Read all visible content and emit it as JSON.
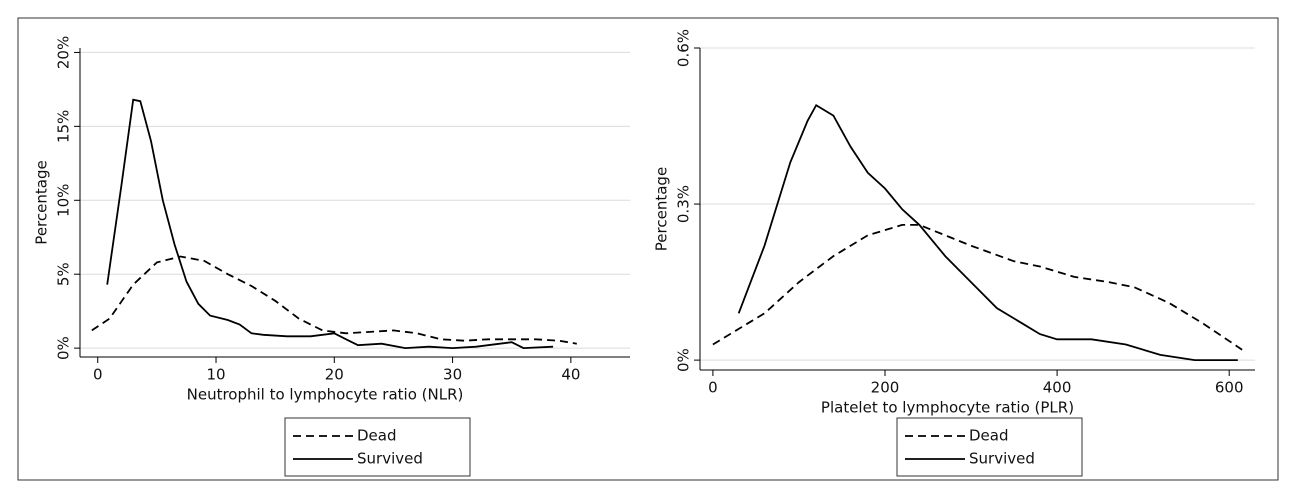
{
  "chart_data": [
    {
      "type": "line",
      "xlabel": "Neutrophil to lymphocyte ratio (NLR)",
      "ylabel": "Percentage",
      "xlim": [
        -1.5,
        45
      ],
      "ylim": [
        -0.6,
        20.3
      ],
      "xticks": [
        0,
        10,
        20,
        30,
        40
      ],
      "yticks": [
        {
          "value": 0,
          "label": "0%"
        },
        {
          "value": 5,
          "label": "5%"
        },
        {
          "value": 10,
          "label": "10%"
        },
        {
          "value": 15,
          "label": "15%"
        },
        {
          "value": 20,
          "label": "20%"
        }
      ],
      "grid": true,
      "series": [
        {
          "name": "Dead",
          "color": "#000000",
          "style": "dashed",
          "x": [
            -0.5,
            1,
            3,
            5,
            7,
            9,
            11,
            13,
            15,
            17,
            19,
            21,
            23,
            25,
            27,
            29,
            31,
            33,
            35,
            37,
            39,
            40.5
          ],
          "values": [
            1.2,
            2,
            4.3,
            5.8,
            6.2,
            5.9,
            5,
            4.2,
            3.2,
            2,
            1.2,
            1,
            1.1,
            1.2,
            1,
            0.6,
            0.5,
            0.6,
            0.6,
            0.6,
            0.5,
            0.3
          ]
        },
        {
          "name": "Survived",
          "color": "#000000",
          "style": "solid",
          "x": [
            0.8,
            2,
            3,
            3.6,
            4.5,
            5.5,
            6.5,
            7.5,
            8.5,
            9.5,
            11,
            12,
            13,
            14,
            16,
            18,
            20,
            21,
            22,
            24,
            26,
            28,
            30,
            32,
            34,
            35,
            36,
            38.5
          ],
          "values": [
            4.3,
            11,
            16.8,
            16.7,
            14,
            10,
            7,
            4.5,
            3,
            2.2,
            1.9,
            1.6,
            1,
            0.9,
            0.8,
            0.8,
            1,
            0.6,
            0.2,
            0.3,
            0,
            0.1,
            0,
            0.1,
            0.3,
            0.4,
            0,
            0.1
          ]
        }
      ]
    },
    {
      "type": "line",
      "xlabel": "Platelet to lymphocyte ratio (PLR)",
      "ylabel": "Percentage",
      "xlim": [
        -15,
        630
      ],
      "ylim": [
        -0.019,
        0.6
      ],
      "xticks": [
        0,
        200,
        400,
        600
      ],
      "yticks": [
        {
          "value": 0,
          "label": "0%"
        },
        {
          "value": 0.3,
          "label": "0.3%"
        },
        {
          "value": 0.6,
          "label": "0.6%"
        }
      ],
      "grid": true,
      "series": [
        {
          "name": "Dead",
          "color": "#000000",
          "style": "dashed",
          "x": [
            0,
            30,
            60,
            100,
            140,
            180,
            220,
            240,
            270,
            300,
            350,
            380,
            420,
            460,
            490,
            530,
            570,
            615
          ],
          "values": [
            0.03,
            0.06,
            0.09,
            0.15,
            0.2,
            0.24,
            0.26,
            0.26,
            0.24,
            0.22,
            0.19,
            0.18,
            0.16,
            0.15,
            0.14,
            0.11,
            0.07,
            0.02
          ]
        },
        {
          "name": "Survived",
          "color": "#000000",
          "style": "solid",
          "x": [
            30,
            60,
            90,
            110,
            120,
            140,
            160,
            180,
            200,
            220,
            240,
            270,
            300,
            330,
            360,
            380,
            400,
            440,
            480,
            520,
            560,
            610
          ],
          "values": [
            0.09,
            0.22,
            0.38,
            0.46,
            0.49,
            0.47,
            0.41,
            0.36,
            0.33,
            0.29,
            0.26,
            0.2,
            0.15,
            0.1,
            0.07,
            0.05,
            0.04,
            0.04,
            0.03,
            0.01,
            0,
            0
          ]
        }
      ]
    }
  ]
}
